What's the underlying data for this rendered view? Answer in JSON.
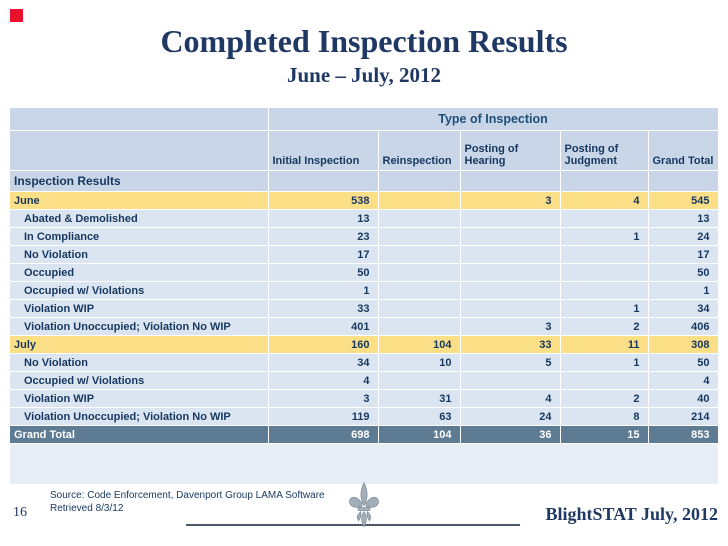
{
  "slide": {
    "title": "Completed Inspection Results",
    "subtitle": "June – July, 2012",
    "page_number": "16",
    "source_line1": "Source: Code Enforcement, Davenport Group LAMA Software",
    "source_line2": "Retrieved 8/3/12",
    "footer_brand": "BlightSTAT July, 2012"
  },
  "table": {
    "spanning_header": "Type of Inspection",
    "row_header": "Inspection Results",
    "columns": [
      "Initial Inspection",
      "Reinspection",
      "Posting of Hearing",
      "Posting of Judgment",
      "Grand Total"
    ],
    "rows": [
      {
        "label": "June",
        "type": "group",
        "values": [
          "538",
          "",
          "3",
          "4",
          "545"
        ]
      },
      {
        "label": "Abated & Demolished",
        "type": "detail",
        "values": [
          "13",
          "",
          "",
          "",
          "13"
        ]
      },
      {
        "label": "In Compliance",
        "type": "detail",
        "values": [
          "23",
          "",
          "",
          "1",
          "24"
        ]
      },
      {
        "label": "No Violation",
        "type": "detail",
        "values": [
          "17",
          "",
          "",
          "",
          "17"
        ]
      },
      {
        "label": "Occupied",
        "type": "detail",
        "values": [
          "50",
          "",
          "",
          "",
          "50"
        ]
      },
      {
        "label": "Occupied w/ Violations",
        "type": "detail",
        "values": [
          "1",
          "",
          "",
          "",
          "1"
        ]
      },
      {
        "label": "Violation WIP",
        "type": "detail",
        "values": [
          "33",
          "",
          "",
          "1",
          "34"
        ]
      },
      {
        "label": "Violation Unoccupied; Violation No WIP",
        "type": "detail",
        "values": [
          "401",
          "",
          "3",
          "2",
          "406"
        ]
      },
      {
        "label": "July",
        "type": "group",
        "values": [
          "160",
          "104",
          "33",
          "11",
          "308"
        ]
      },
      {
        "label": "No Violation",
        "type": "detail",
        "values": [
          "34",
          "10",
          "5",
          "1",
          "50"
        ]
      },
      {
        "label": "Occupied w/ Violations",
        "type": "detail",
        "values": [
          "4",
          "",
          "",
          "",
          "4"
        ]
      },
      {
        "label": "Violation WIP",
        "type": "detail",
        "values": [
          "3",
          "31",
          "4",
          "2",
          "40"
        ]
      },
      {
        "label": "Violation Unoccupied; Violation No WIP",
        "type": "detail",
        "values": [
          "119",
          "63",
          "24",
          "8",
          "214"
        ]
      },
      {
        "label": "Grand Total",
        "type": "total",
        "values": [
          "698",
          "104",
          "36",
          "15",
          "853"
        ]
      }
    ]
  },
  "colors": {
    "title_navy": "#1F3864",
    "table_text": "#17375E",
    "header_bg": "#C8D6E8",
    "detail_bg": "#DBE5F1",
    "group_bg": "#FBDF87",
    "total_bg": "#5E7B94",
    "total_text": "#FFFFFF",
    "red_marker": "#E8112D",
    "rule_color": "#4D5A6A",
    "fleur_gray": "#A3AEBA"
  }
}
